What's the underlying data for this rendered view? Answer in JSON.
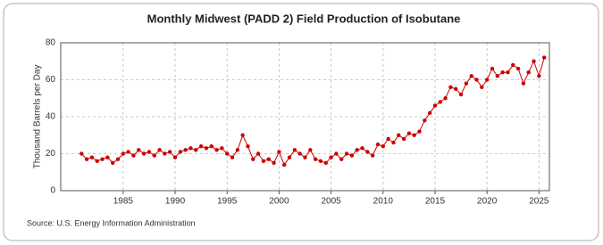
{
  "chart_data": {
    "type": "line",
    "title": "Monthly Midwest (PADD 2) Field Production of Isobutane",
    "y_label": "Thousand Barrels per Day",
    "source": "Source: U.S. Energy Information Administration",
    "color": "#cc0000",
    "x": [
      1981.0,
      1981.5,
      1982.0,
      1982.5,
      1983.0,
      1983.5,
      1984.0,
      1984.5,
      1985.0,
      1985.5,
      1986.0,
      1986.5,
      1987.0,
      1987.5,
      1988.0,
      1988.5,
      1989.0,
      1989.5,
      1990.0,
      1990.5,
      1991.0,
      1991.5,
      1992.0,
      1992.5,
      1993.0,
      1993.5,
      1994.0,
      1994.5,
      1995.0,
      1995.5,
      1996.0,
      1996.5,
      1997.0,
      1997.5,
      1998.0,
      1998.5,
      1999.0,
      1999.5,
      2000.0,
      2000.5,
      2001.0,
      2001.5,
      2002.0,
      2002.5,
      2003.0,
      2003.5,
      2004.0,
      2004.5,
      2005.0,
      2005.5,
      2006.0,
      2006.5,
      2007.0,
      2007.5,
      2008.0,
      2008.5,
      2009.0,
      2009.5,
      2010.0,
      2010.5,
      2011.0,
      2011.5,
      2012.0,
      2012.5,
      2013.0,
      2013.5,
      2014.0,
      2014.5,
      2015.0,
      2015.5,
      2016.0,
      2016.5,
      2017.0,
      2017.5,
      2018.0,
      2018.5,
      2019.0,
      2019.5,
      2020.0,
      2020.5,
      2021.0,
      2021.5,
      2022.0,
      2022.5,
      2023.0,
      2023.5,
      2024.0,
      2024.5,
      2025.0,
      2025.5
    ],
    "values": [
      20,
      17,
      18,
      16,
      17,
      18,
      15,
      17,
      20,
      21,
      19,
      22,
      20,
      21,
      19,
      22,
      20,
      21,
      18,
      21,
      22,
      23,
      22,
      24,
      23,
      24,
      22,
      23,
      20,
      18,
      22,
      30,
      24,
      17,
      20,
      16,
      17,
      15,
      21,
      14,
      18,
      22,
      20,
      18,
      22,
      17,
      16,
      15,
      18,
      20,
      17,
      20,
      19,
      22,
      23,
      21,
      19,
      25,
      24,
      28,
      26,
      30,
      28,
      31,
      30,
      32,
      38,
      42,
      46,
      48,
      50,
      56,
      55,
      52,
      58,
      62,
      60,
      56,
      60,
      66,
      62,
      64,
      64,
      68,
      66,
      58,
      64,
      70,
      62,
      72
    ],
    "xlim": [
      1979,
      2026
    ],
    "xticks": [
      1985,
      1990,
      1995,
      2000,
      2005,
      2010,
      2015,
      2020,
      2025
    ],
    "ylim": [
      0,
      80
    ],
    "yticks": [
      0,
      20,
      40,
      60,
      80
    ],
    "grid": true
  }
}
